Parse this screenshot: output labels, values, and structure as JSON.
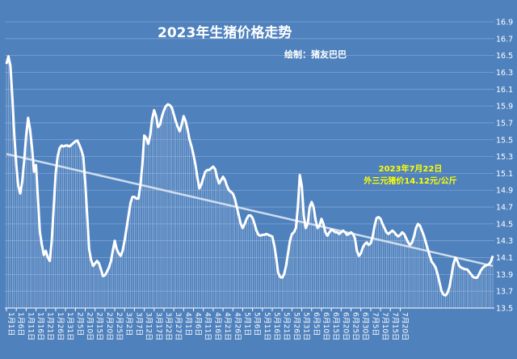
{
  "chart_data": {
    "type": "line",
    "title": "2023年生猪价格走势",
    "subtitle": "绘制：猪友巴巴",
    "annotation": [
      "2023年7月22日",
      "外三元猪价14.12元/公斤"
    ],
    "xlabel": "",
    "ylabel": "",
    "ylim": [
      13.5,
      16.9
    ],
    "y_ticks": [
      "13.5",
      "13.7",
      "13.9",
      "14.1",
      "14.3",
      "14.5",
      "14.7",
      "14.9",
      "15.1",
      "15.3",
      "15.5",
      "15.7",
      "15.9",
      "16.1",
      "16.3",
      "16.5",
      "16.7",
      "16.9"
    ],
    "x_tick_labels": [
      "1月1日",
      "1月6日",
      "1月11日",
      "1月16日",
      "1月21日",
      "1月26日",
      "1月31日",
      "2月5日",
      "2月10日",
      "2月15日",
      "2月20日",
      "2月25日",
      "3月2日",
      "3月7日",
      "3月12日",
      "3月17日",
      "3月22日",
      "3月27日",
      "4月1日",
      "4月6日",
      "4月11日",
      "4月16日",
      "4月21日",
      "4月26日",
      "5月1日",
      "5月6日",
      "5月11日",
      "5月16日",
      "5月21日",
      "5月26日",
      "5月31日",
      "6月5日",
      "6月10日",
      "6月15日",
      "6月20日",
      "6月25日",
      "6月30日",
      "7月5日",
      "7月10日",
      "7月15日",
      "7月20日"
    ],
    "x_tick_text": [
      "1月1日",
      "1月6日",
      "1月11日",
      "1月16日",
      "1月21日",
      "1月26日",
      "1月31日",
      "2月5日",
      "2月10日",
      "2月15日",
      "2月20日",
      "2月25日",
      "3月2日",
      "3月7日",
      "3月12日",
      "3月17日",
      "3月22日",
      "3月27日",
      "4月1日",
      "4月6日",
      "4月11日",
      "4月16日",
      "4月21日",
      "4月26日",
      "5月1日",
      "5月6日",
      "5月11日",
      "5月16日",
      "5月21日",
      "5月26日",
      "5月31日",
      "6月5日",
      "6月10日",
      "6月15日",
      "6月20日",
      "6月25日",
      "6月30日",
      "7月5日",
      "7月10日",
      "7月15日",
      "7月20日"
    ],
    "grid": true,
    "series": [
      {
        "type": "line",
        "color": "#ffffff",
        "x_start": "1月1日",
        "x_end": "7月22日",
        "values": [
          16.4,
          16.49,
          16.38,
          16.0,
          15.55,
          15.2,
          14.95,
          14.86,
          15.0,
          15.25,
          15.55,
          15.76,
          15.62,
          15.4,
          15.12,
          15.2,
          14.8,
          14.4,
          14.25,
          14.13,
          14.18,
          14.1,
          14.06,
          14.3,
          14.7,
          15.1,
          15.3,
          15.4,
          15.43,
          15.42,
          15.43,
          15.43,
          15.42,
          15.44,
          15.46,
          15.48,
          15.49,
          15.44,
          15.38,
          15.3,
          15.0,
          14.6,
          14.2,
          14.07,
          14.0,
          14.03,
          14.06,
          14.03,
          13.96,
          13.88,
          13.89,
          13.93,
          13.98,
          14.05,
          14.18,
          14.3,
          14.2,
          14.15,
          14.12,
          14.18,
          14.3,
          14.45,
          14.6,
          14.75,
          14.82,
          14.82,
          14.8,
          14.8,
          14.95,
          15.2,
          15.55,
          15.52,
          15.45,
          15.55,
          15.75,
          15.85,
          15.78,
          15.65,
          15.68,
          15.78,
          15.85,
          15.9,
          15.92,
          15.91,
          15.88,
          15.8,
          15.72,
          15.65,
          15.6,
          15.68,
          15.78,
          15.72,
          15.62,
          15.5,
          15.42,
          15.32,
          15.2,
          15.05,
          14.92,
          14.97,
          15.05,
          15.12,
          15.14,
          15.14,
          15.16,
          15.18,
          15.15,
          15.05,
          14.98,
          15.02,
          15.06,
          15.02,
          14.95,
          14.9,
          14.88,
          14.86,
          14.8,
          14.7,
          14.6,
          14.5,
          14.45,
          14.5,
          14.56,
          14.6,
          14.6,
          14.57,
          14.5,
          14.42,
          14.37,
          14.36,
          14.37,
          14.37,
          14.38,
          14.37,
          14.36,
          14.35,
          14.25,
          14.1,
          13.92,
          13.87,
          13.86,
          13.9,
          14.0,
          14.15,
          14.3,
          14.38,
          14.4,
          14.45,
          14.7,
          15.08,
          14.95,
          14.6,
          14.45,
          14.5,
          14.7,
          14.76,
          14.7,
          14.55,
          14.45,
          14.48,
          14.56,
          14.5,
          14.4,
          14.36,
          14.4,
          14.43,
          14.42,
          14.4,
          14.4,
          14.38,
          14.4,
          14.42,
          14.4,
          14.37,
          14.38,
          14.4,
          14.38,
          14.33,
          14.18,
          14.12,
          14.15,
          14.22,
          14.26,
          14.28,
          14.25,
          14.27,
          14.35,
          14.48,
          14.57,
          14.58,
          14.56,
          14.5,
          14.45,
          14.4,
          14.38,
          14.4,
          14.42,
          14.4,
          14.37,
          14.35,
          14.37,
          14.4,
          14.38,
          14.33,
          14.28,
          14.25,
          14.28,
          14.35,
          14.45,
          14.5,
          14.48,
          14.42,
          14.36,
          14.28,
          14.2,
          14.12,
          14.05,
          14.02,
          13.98,
          13.9,
          13.8,
          13.7,
          13.66,
          13.65,
          13.68,
          13.75,
          13.88,
          14.02,
          14.1,
          14.06,
          14.0,
          13.98,
          13.97,
          13.96,
          13.96,
          13.93,
          13.9,
          13.87,
          13.86,
          13.86,
          13.9,
          13.95,
          13.98,
          14.0,
          14.01,
          14.02,
          14.05,
          14.12
        ]
      },
      {
        "type": "trendline",
        "color": "#dce6f2",
        "values_start": 15.33,
        "values_end": 14.0
      }
    ]
  }
}
